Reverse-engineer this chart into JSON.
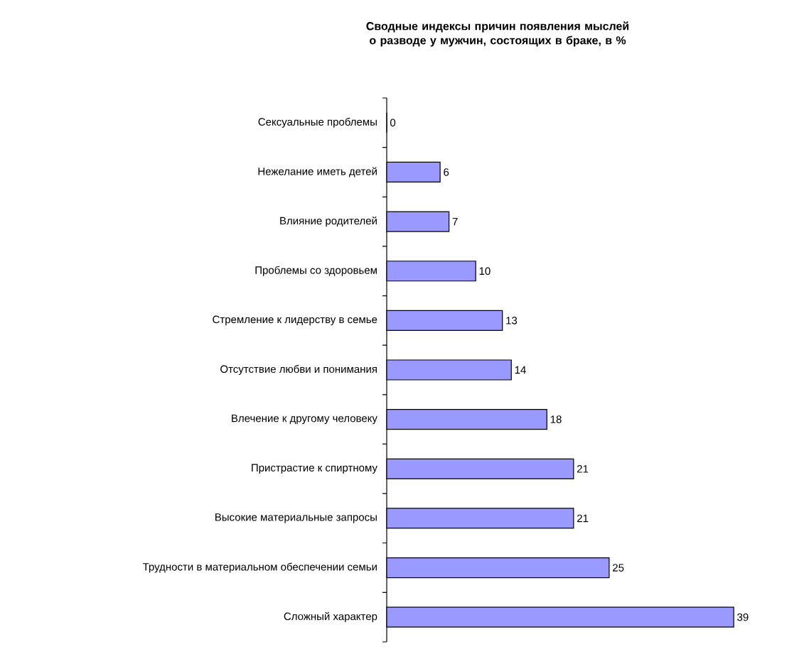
{
  "chart_data": {
    "type": "bar",
    "orientation": "horizontal",
    "title": "**Сводные индексы причин появления мыслей о разводе у мужчин, состоящих в браке, в %**",
    "categories": [
      "Сексуальные проблемы",
      "Нежелание иметь детей",
      "Влияние родителей",
      "Проблемы со здоровьем",
      "Стремление к лидерству в семье",
      "Отсутствие любви и понимания",
      "Влечение к другому человеку",
      "Пристрастие к спиртному",
      "Высокие материальные запросы",
      "Трудности в материальном обеспечении семьи",
      "Сложный  характер"
    ],
    "values": [
      0,
      6,
      7,
      10,
      13,
      14,
      18,
      21,
      21,
      25,
      39
    ],
    "color": "#9999ff",
    "data_labels": true,
    "relative": false,
    "tick_labels": "y"
  }
}
